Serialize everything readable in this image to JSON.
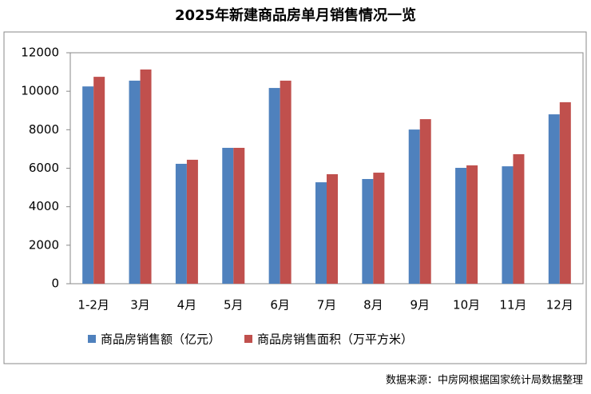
{
  "chart_data": {
    "type": "bar",
    "title": "2025年新建商品房单月销售情况一览",
    "categories": [
      "1-2月",
      "3月",
      "4月",
      "5月",
      "6月",
      "7月",
      "8月",
      "9月",
      "10月",
      "11月",
      "12月"
    ],
    "series": [
      {
        "name": "商品房销售额（亿元）",
        "color": "#4f81bd",
        "values": [
          10250,
          10550,
          6230,
          7060,
          10170,
          5270,
          5440,
          8010,
          6020,
          6100,
          8800
        ]
      },
      {
        "name": "商品房销售面积（万平方米）",
        "color": "#c0504d",
        "values": [
          10750,
          11130,
          6440,
          7060,
          10550,
          5690,
          5770,
          8550,
          6150,
          6730,
          9430
        ]
      }
    ],
    "ylim": [
      0,
      12000
    ],
    "yticks": [
      0,
      2000,
      4000,
      6000,
      8000,
      10000,
      12000
    ],
    "grid": false,
    "source": "数据来源：中房网根据国家统计局数据整理"
  }
}
